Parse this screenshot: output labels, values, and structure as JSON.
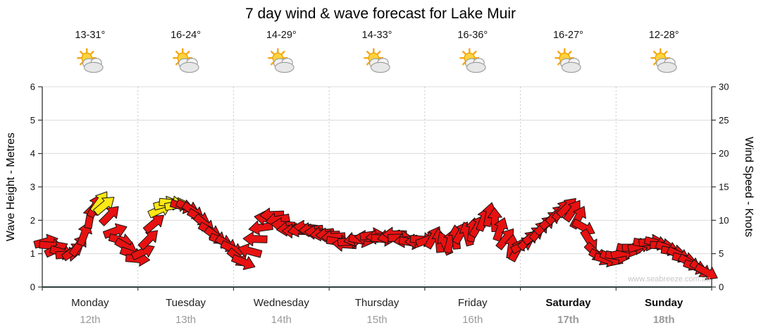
{
  "title": "7 day wind & wave forecast for Lake Muir",
  "watermark": "www.seabreeze.com.au",
  "axes": {
    "left": {
      "title": "Wave Height - Metres",
      "ticks": [
        0,
        1,
        2,
        3,
        4,
        5,
        6
      ]
    },
    "right": {
      "title": "Wind Speed - Knots",
      "ticks": [
        0,
        5,
        10,
        15,
        20,
        25,
        30
      ]
    }
  },
  "days": [
    {
      "name": "Monday",
      "date": "12th",
      "temp": "13-31°",
      "bold": false
    },
    {
      "name": "Tuesday",
      "date": "13th",
      "temp": "16-24°",
      "bold": false
    },
    {
      "name": "Wednesday",
      "date": "14th",
      "temp": "14-29°",
      "bold": false
    },
    {
      "name": "Thursday",
      "date": "15th",
      "temp": "14-33°",
      "bold": false
    },
    {
      "name": "Friday",
      "date": "16th",
      "temp": "16-36°",
      "bold": false
    },
    {
      "name": "Saturday",
      "date": "17th",
      "temp": "16-27°",
      "bold": true
    },
    {
      "name": "Sunday",
      "date": "18th",
      "temp": "12-28°",
      "bold": true
    }
  ],
  "weather_icon": "sun-behind-cloud-icon",
  "colors": {
    "arrow_red": "#e81111",
    "arrow_yellow": "#ffe813",
    "arrow_outline": "#141414",
    "grid": "#dcdcdc",
    "grid_dotted": "#c8c8c8",
    "axis": "#333333",
    "date_text": "#9a9a9a"
  },
  "chart_data": {
    "type": "scatter",
    "marker": "directional-wind-arrow",
    "title": "7 day wind & wave forecast for Lake Muir",
    "categories": [
      "Monday 12th",
      "Tuesday 13th",
      "Wednesday 14th",
      "Thursday 15th",
      "Friday 16th",
      "Saturday 17th",
      "Sunday 18th"
    ],
    "x_hours_range": [
      0,
      168
    ],
    "y_left": {
      "label": "Wave Height - Metres",
      "range": [
        0,
        6
      ]
    },
    "y_right": {
      "label": "Wind Speed - Knots",
      "range": [
        0,
        30
      ]
    },
    "grid": true,
    "points_format": "[hours_from_start, wind_speed_knots, arrow_direction_deg_cw_from_east, color r=red y=yellow]",
    "points": [
      [
        1,
        6.8,
        -15,
        "r"
      ],
      [
        2.3,
        6.2,
        5,
        "r"
      ],
      [
        3.6,
        5.7,
        -25,
        "r"
      ],
      [
        5,
        5.2,
        15,
        "r"
      ],
      [
        6.4,
        4.9,
        -5,
        "r"
      ],
      [
        7.8,
        5.4,
        -35,
        "r"
      ],
      [
        9.2,
        6.3,
        -55,
        "r"
      ],
      [
        10.6,
        8.0,
        -70,
        "r"
      ],
      [
        12,
        10.6,
        -80,
        "r"
      ],
      [
        13.3,
        12.2,
        -65,
        "r"
      ],
      [
        14.5,
        12.8,
        -55,
        "y"
      ],
      [
        15.7,
        12.3,
        -40,
        "y"
      ],
      [
        17,
        10.8,
        -45,
        "r"
      ],
      [
        18.4,
        8.4,
        -20,
        "r"
      ],
      [
        19.8,
        7.0,
        15,
        "r"
      ],
      [
        21.2,
        6.0,
        30,
        "r"
      ],
      [
        22.6,
        4.9,
        20,
        "r"
      ],
      [
        24,
        4.2,
        5,
        "r"
      ],
      [
        25.4,
        5.3,
        -25,
        "r"
      ],
      [
        26.8,
        7.2,
        -45,
        "r"
      ],
      [
        28.2,
        9.6,
        -40,
        "r"
      ],
      [
        29.6,
        11.6,
        -25,
        "y"
      ],
      [
        31,
        12.5,
        -15,
        "y"
      ],
      [
        32.4,
        12.6,
        5,
        "y"
      ],
      [
        33.8,
        12.3,
        -10,
        "y"
      ],
      [
        35.2,
        12.1,
        15,
        "r"
      ],
      [
        36.6,
        11.9,
        25,
        "r"
      ],
      [
        38,
        11.3,
        35,
        "r"
      ],
      [
        39.4,
        10.4,
        30,
        "r"
      ],
      [
        40.8,
        9.4,
        40,
        "r"
      ],
      [
        42.2,
        8.4,
        28,
        "r"
      ],
      [
        43.6,
        7.6,
        36,
        "r"
      ],
      [
        45,
        6.9,
        22,
        "r"
      ],
      [
        46.4,
        6.4,
        32,
        "r"
      ],
      [
        47.8,
        5.7,
        26,
        "r"
      ],
      [
        49.2,
        4.3,
        40,
        "r"
      ],
      [
        50.6,
        3.7,
        22,
        "r"
      ],
      [
        52,
        5.4,
        195,
        "r"
      ],
      [
        53.4,
        7.2,
        182,
        "r"
      ],
      [
        54.8,
        8.9,
        172,
        "r"
      ],
      [
        56.2,
        10.3,
        188,
        "r"
      ],
      [
        57.6,
        10.8,
        178,
        "r"
      ],
      [
        59,
        10.1,
        170,
        "r"
      ],
      [
        60.4,
        9.3,
        184,
        "r"
      ],
      [
        61.8,
        8.7,
        176,
        "r"
      ],
      [
        63.2,
        8.4,
        180,
        "r"
      ],
      [
        64.6,
        8.6,
        170,
        "r"
      ],
      [
        66,
        8.9,
        186,
        "r"
      ],
      [
        67.4,
        8.6,
        176,
        "r"
      ],
      [
        68.8,
        8.2,
        182,
        "r"
      ],
      [
        70.2,
        8.0,
        172,
        "r"
      ],
      [
        71.6,
        7.8,
        178,
        "r"
      ],
      [
        73,
        7.5,
        176,
        "r"
      ],
      [
        74.4,
        6.8,
        8,
        "r"
      ],
      [
        75.8,
        6.4,
        184,
        "r"
      ],
      [
        77.2,
        6.8,
        -4,
        "r"
      ],
      [
        78.6,
        7.2,
        168,
        "r"
      ],
      [
        80,
        7.0,
        12,
        "r"
      ],
      [
        81.4,
        7.4,
        186,
        "r"
      ],
      [
        82.8,
        7.8,
        -8,
        "r"
      ],
      [
        84.2,
        7.5,
        178,
        "r"
      ],
      [
        85.6,
        7.2,
        6,
        "r"
      ],
      [
        87,
        7.6,
        166,
        "r"
      ],
      [
        88.4,
        7.9,
        180,
        "r"
      ],
      [
        89.8,
        7.4,
        -2,
        "r"
      ],
      [
        91.2,
        7.0,
        172,
        "r"
      ],
      [
        92.6,
        6.7,
        10,
        "r"
      ],
      [
        94,
        6.9,
        176,
        "r"
      ],
      [
        95.4,
        7.1,
        4,
        "r"
      ],
      [
        96.8,
        7.1,
        -20,
        "r"
      ],
      [
        98.2,
        7.5,
        -60,
        "r"
      ],
      [
        99.6,
        7.0,
        -95,
        "r"
      ],
      [
        101,
        6.6,
        -115,
        "r"
      ],
      [
        102.4,
        6.9,
        -75,
        "r"
      ],
      [
        103.8,
        7.5,
        -95,
        "r"
      ],
      [
        105.2,
        8.2,
        -60,
        "r"
      ],
      [
        106.6,
        8.0,
        -105,
        "r"
      ],
      [
        108,
        8.6,
        -80,
        "r"
      ],
      [
        109.4,
        9.2,
        -60,
        "r"
      ],
      [
        110.8,
        10.2,
        -70,
        "r"
      ],
      [
        112.2,
        10.9,
        -78,
        "r"
      ],
      [
        113.6,
        10.1,
        -92,
        "r"
      ],
      [
        115,
        8.7,
        -70,
        "r"
      ],
      [
        116.4,
        7.3,
        -52,
        "r"
      ],
      [
        117.8,
        6.1,
        -82,
        "r"
      ],
      [
        119.2,
        5.6,
        -62,
        "r"
      ],
      [
        120.6,
        6.3,
        -28,
        "r"
      ],
      [
        122,
        7.1,
        -45,
        "r"
      ],
      [
        123.4,
        7.8,
        -38,
        "r"
      ],
      [
        124.8,
        8.5,
        -50,
        "r"
      ],
      [
        126.2,
        9.3,
        -44,
        "r"
      ],
      [
        127.6,
        10.1,
        -40,
        "r"
      ],
      [
        129,
        10.9,
        -46,
        "r"
      ],
      [
        130.4,
        11.6,
        -52,
        "r"
      ],
      [
        131.8,
        12.0,
        -45,
        "r"
      ],
      [
        133.2,
        11.5,
        -55,
        "r"
      ],
      [
        134.6,
        10.5,
        -62,
        "r"
      ],
      [
        136,
        8.9,
        28,
        "r"
      ],
      [
        137.4,
        6.9,
        58,
        "r"
      ],
      [
        138.8,
        5.1,
        44,
        "r"
      ],
      [
        140.2,
        4.4,
        30,
        "r"
      ],
      [
        141.6,
        4.1,
        16,
        "r"
      ],
      [
        143,
        4.3,
        24,
        "r"
      ],
      [
        144.4,
        4.6,
        10,
        "r"
      ],
      [
        145.8,
        5.1,
        -12,
        "r"
      ],
      [
        147.2,
        5.6,
        14,
        "r"
      ],
      [
        148.6,
        5.9,
        0,
        "r"
      ],
      [
        150,
        6.2,
        -16,
        "r"
      ],
      [
        151.4,
        6.5,
        10,
        "r"
      ],
      [
        152.8,
        6.8,
        -6,
        "r"
      ],
      [
        154.2,
        6.6,
        14,
        "r"
      ],
      [
        155.6,
        6.2,
        4,
        "r"
      ],
      [
        157,
        5.8,
        20,
        "r"
      ],
      [
        158.4,
        5.3,
        10,
        "r"
      ],
      [
        159.8,
        4.8,
        26,
        "r"
      ],
      [
        161.2,
        4.2,
        14,
        "r"
      ],
      [
        162.6,
        3.6,
        30,
        "r"
      ],
      [
        164,
        3.0,
        20,
        "r"
      ],
      [
        165.4,
        2.6,
        36,
        "r"
      ],
      [
        166.8,
        2.2,
        28,
        "r"
      ]
    ]
  }
}
